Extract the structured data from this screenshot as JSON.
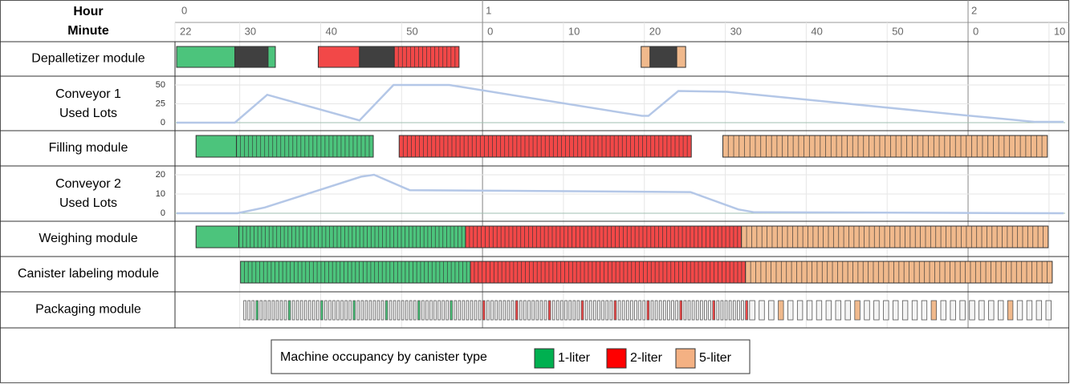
{
  "chart_data": {
    "type": "gantt",
    "hour_label": "Hour",
    "minute_label": "Minute",
    "xlim": [
      22,
      132
    ],
    "hour_ticks": [
      {
        "value": 22,
        "label": "0"
      },
      {
        "value": 60,
        "label": "1"
      },
      {
        "value": 120,
        "label": "2"
      }
    ],
    "xticks": [
      {
        "value": 22,
        "label": "22"
      },
      30,
      40,
      50,
      {
        "value": 60,
        "label": "0"
      },
      {
        "value": 70,
        "label": "10"
      },
      {
        "value": 80,
        "label": "20"
      },
      {
        "value": 90,
        "label": "30"
      },
      {
        "value": 100,
        "label": "40"
      },
      {
        "value": 110,
        "label": "50"
      },
      {
        "value": 120,
        "label": "0"
      },
      {
        "value": 130,
        "label": "10"
      }
    ],
    "types": [
      {
        "name": "1-liter",
        "color": "#00b050",
        "bar_color": "#4cc47c"
      },
      {
        "name": "2-liter",
        "color": "#ff0000",
        "bar_color": "#f24848"
      },
      {
        "name": "5-liter",
        "color": "#f4b183",
        "bar_color": "#f0b98c"
      }
    ],
    "changeover_color": "#404040",
    "line_color": "#b4c7e7",
    "legend_title": "Machine occupancy by canister type",
    "rows": [
      {
        "name": [
          "Depalletizer module"
        ],
        "kind": "gantt",
        "segments": [
          {
            "start": 22.2,
            "end": 29.4,
            "type": 0,
            "count": 1
          },
          {
            "start": 29.4,
            "end": 33.5,
            "type": null,
            "count": 1
          },
          {
            "start": 33.5,
            "end": 34.4,
            "type": 0,
            "count": 1
          },
          {
            "start": 39.7,
            "end": 44.8,
            "type": 1,
            "count": 1
          },
          {
            "start": 44.8,
            "end": 49.1,
            "type": null,
            "count": 1
          },
          {
            "start": 49.1,
            "end": 57.1,
            "type": 1,
            "count": 16
          },
          {
            "start": 79.6,
            "end": 80.7,
            "type": 2,
            "count": 1
          },
          {
            "start": 80.7,
            "end": 84,
            "type": null,
            "count": 1
          },
          {
            "start": 84,
            "end": 85.1,
            "type": 2,
            "count": 1
          }
        ]
      },
      {
        "name": [
          "Conveyor 1",
          "Used Lots"
        ],
        "kind": "line",
        "ylim": [
          0,
          50
        ],
        "yticks": [
          0,
          25,
          50
        ],
        "x": [
          22.2,
          29.4,
          33.4,
          44.8,
          49,
          55.9,
          79.7,
          80.5,
          84.2,
          90.2,
          119.4,
          128.3,
          131.8
        ],
        "values": [
          0,
          0,
          37,
          3,
          50,
          50,
          9,
          9,
          42,
          41,
          10,
          1,
          1
        ]
      },
      {
        "name": [
          "Filling module"
        ],
        "kind": "gantt",
        "segments": [
          {
            "start": 24.6,
            "end": 29.6,
            "type": 0,
            "count": 1
          },
          {
            "start": 29.6,
            "end": 46.5,
            "type": 0,
            "count": 34
          },
          {
            "start": 49.7,
            "end": 85.8,
            "type": 1,
            "count": 72
          },
          {
            "start": 89.7,
            "end": 129.8,
            "type": 2,
            "count": 60
          }
        ]
      },
      {
        "name": [
          "Conveyor 2",
          "Used Lots"
        ],
        "kind": "line",
        "ylim": [
          0,
          20
        ],
        "yticks": [
          0,
          10,
          20
        ],
        "x": [
          22.2,
          29.7,
          33.1,
          45,
          46.6,
          51,
          85.7,
          91.6,
          93.6,
          131.8
        ],
        "values": [
          0,
          0,
          3,
          19,
          20,
          12,
          11,
          2,
          0.5,
          0
        ]
      },
      {
        "name": [
          "Weighing module"
        ],
        "kind": "gantt",
        "segments": [
          {
            "start": 24.6,
            "end": 29.9,
            "type": 0,
            "count": 1
          },
          {
            "start": 29.9,
            "end": 57.9,
            "type": 0,
            "count": 60
          },
          {
            "start": 57.9,
            "end": 92,
            "type": 1,
            "count": 70
          },
          {
            "start": 92,
            "end": 129.9,
            "type": 2,
            "count": 60
          }
        ]
      },
      {
        "name": [
          "Canister labeling module"
        ],
        "kind": "gantt",
        "segments": [
          {
            "start": 30.1,
            "end": 58.5,
            "type": 0,
            "count": 60
          },
          {
            "start": 58.5,
            "end": 92.5,
            "type": 1,
            "count": 70
          },
          {
            "start": 92.5,
            "end": 130.4,
            "type": 2,
            "count": 60
          }
        ]
      },
      {
        "name": [
          "Packaging module"
        ],
        "kind": "boxes",
        "segments": [
          {
            "start": 30.5,
            "end": 58.5,
            "type": 0,
            "count": 56
          },
          {
            "start": 58.5,
            "end": 93,
            "type": 1,
            "count": 68
          },
          {
            "start": 93,
            "end": 130.8,
            "type": 2,
            "count": 32
          }
        ]
      }
    ]
  }
}
